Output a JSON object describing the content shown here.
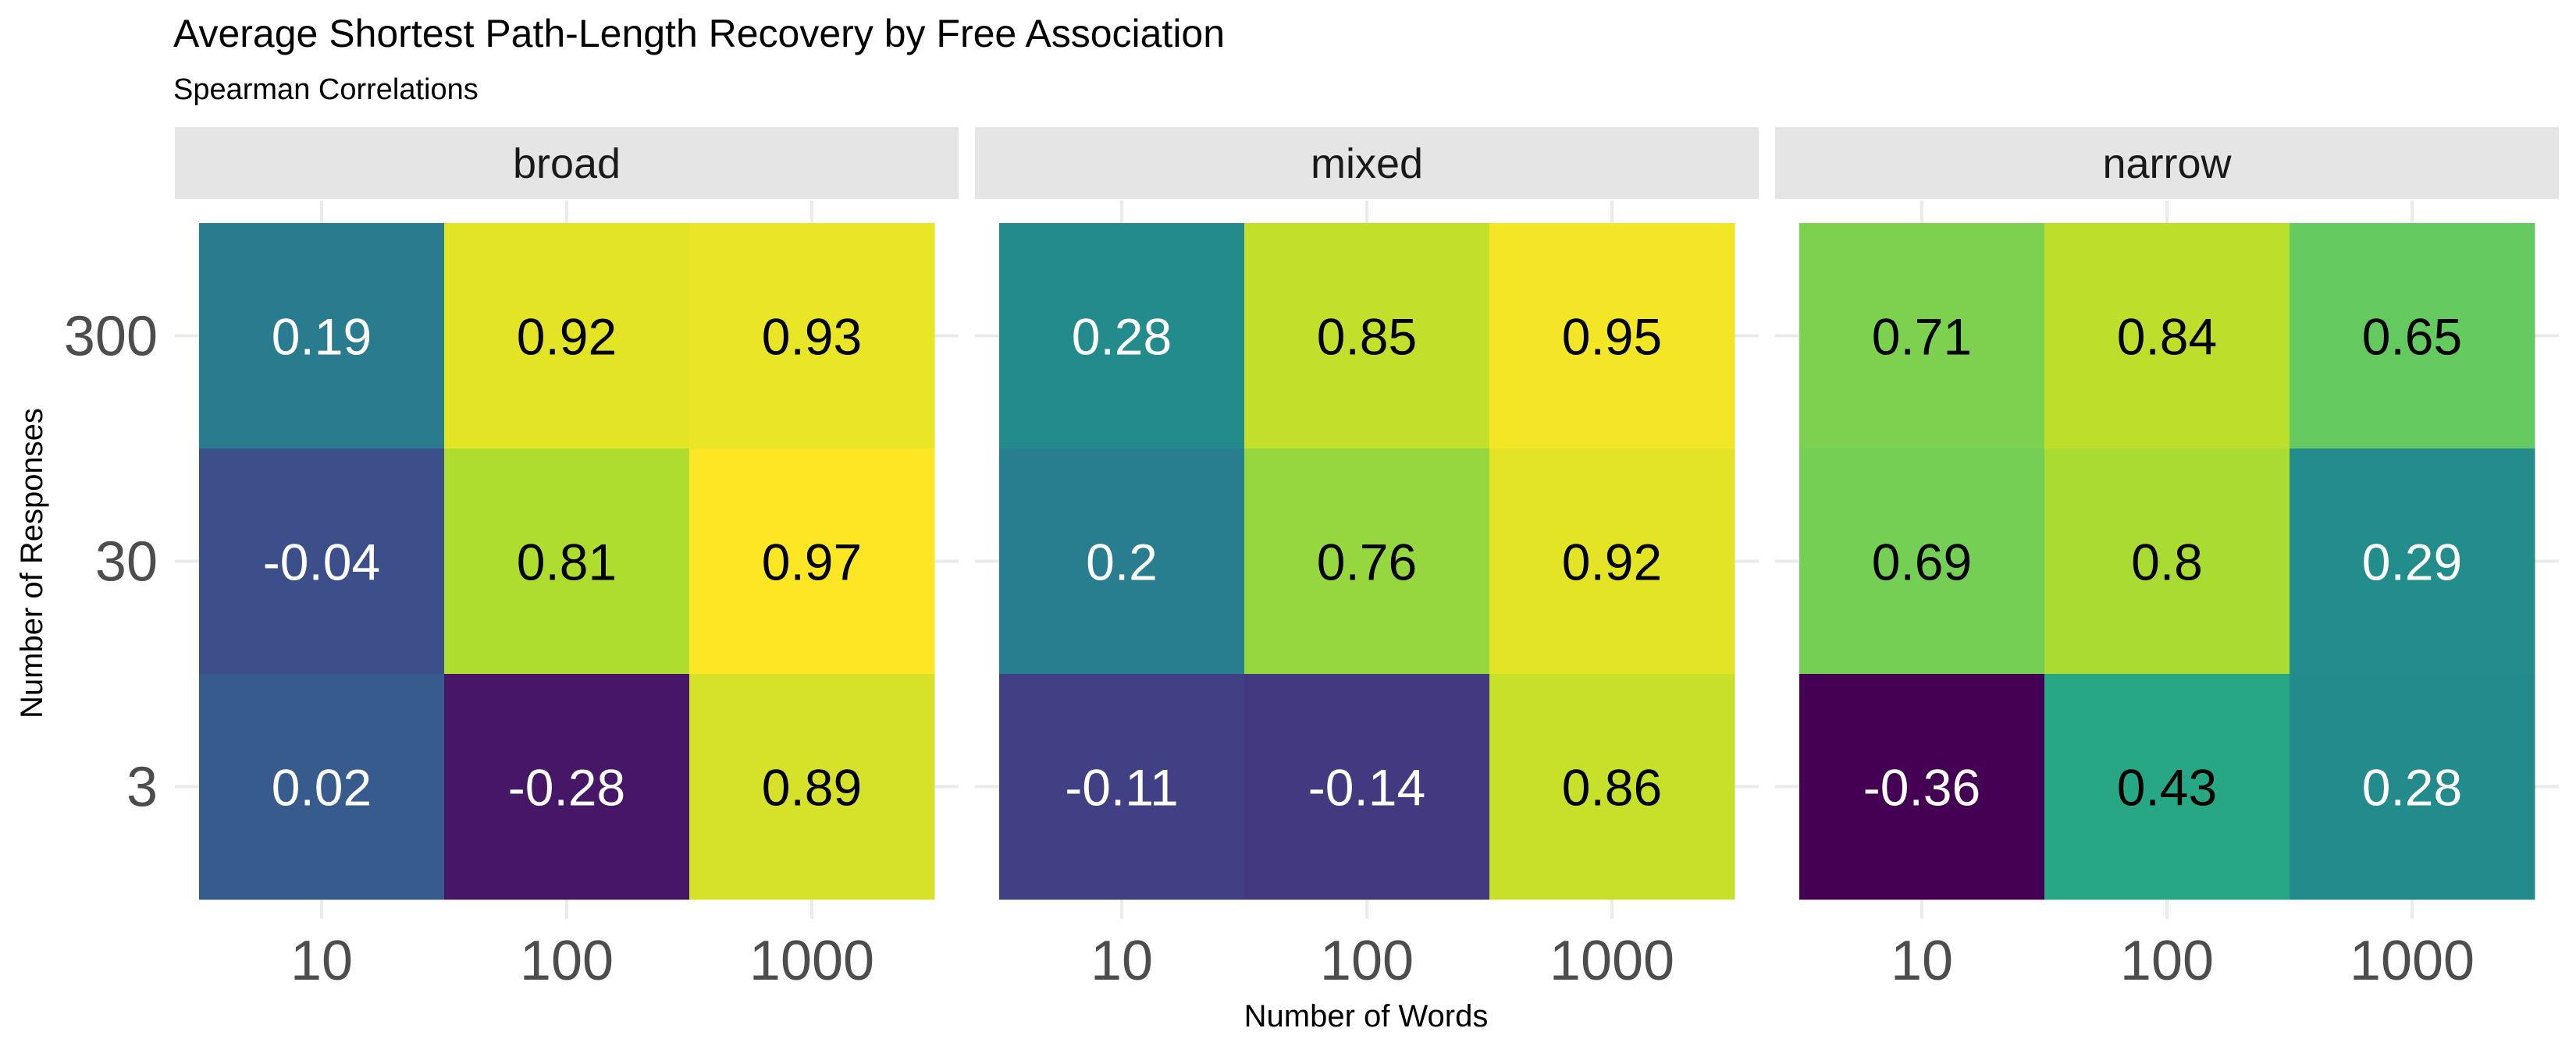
{
  "chart_data": {
    "type": "heatmap",
    "title": "Average Shortest Path-Length Recovery by Free Association",
    "subtitle": "Spearman Correlations",
    "xlabel": "Number of Words",
    "ylabel": "Number of Responses",
    "x_categories": [
      "10",
      "100",
      "1000"
    ],
    "y_categories": [
      "300",
      "30",
      "3"
    ],
    "facets": [
      "broad",
      "mixed",
      "narrow"
    ],
    "values": {
      "broad": [
        [
          0.19,
          0.92,
          0.93
        ],
        [
          -0.04,
          0.81,
          0.97
        ],
        [
          0.02,
          -0.28,
          0.89
        ]
      ],
      "mixed": [
        [
          0.28,
          0.85,
          0.95
        ],
        [
          0.2,
          0.76,
          0.92
        ],
        [
          -0.11,
          -0.14,
          0.86
        ]
      ],
      "narrow": [
        [
          0.71,
          0.84,
          0.65
        ],
        [
          0.69,
          0.8,
          0.29
        ],
        [
          -0.36,
          0.43,
          0.28
        ]
      ]
    },
    "labels": {
      "broad": [
        [
          "0.19",
          "0.92",
          "0.93"
        ],
        [
          "-0.04",
          "0.81",
          "0.97"
        ],
        [
          "0.02",
          "-0.28",
          "0.89"
        ]
      ],
      "mixed": [
        [
          "0.28",
          "0.85",
          "0.95"
        ],
        [
          "0.2",
          "0.76",
          "0.92"
        ],
        [
          "-0.11",
          "-0.14",
          "0.86"
        ]
      ],
      "narrow": [
        [
          "0.71",
          "0.84",
          "0.65"
        ],
        [
          "0.69",
          "0.8",
          "0.29"
        ],
        [
          "-0.36",
          "0.43",
          "0.28"
        ]
      ]
    },
    "color_scale": "viridis",
    "color_range": [
      -0.36,
      0.97
    ],
    "grid": true,
    "legend": "none"
  },
  "colors": {
    "strip_background": "#e5e5e5",
    "gridline": "#ebebeb",
    "label_light": "#ffffff",
    "label_dark": "#000000"
  }
}
